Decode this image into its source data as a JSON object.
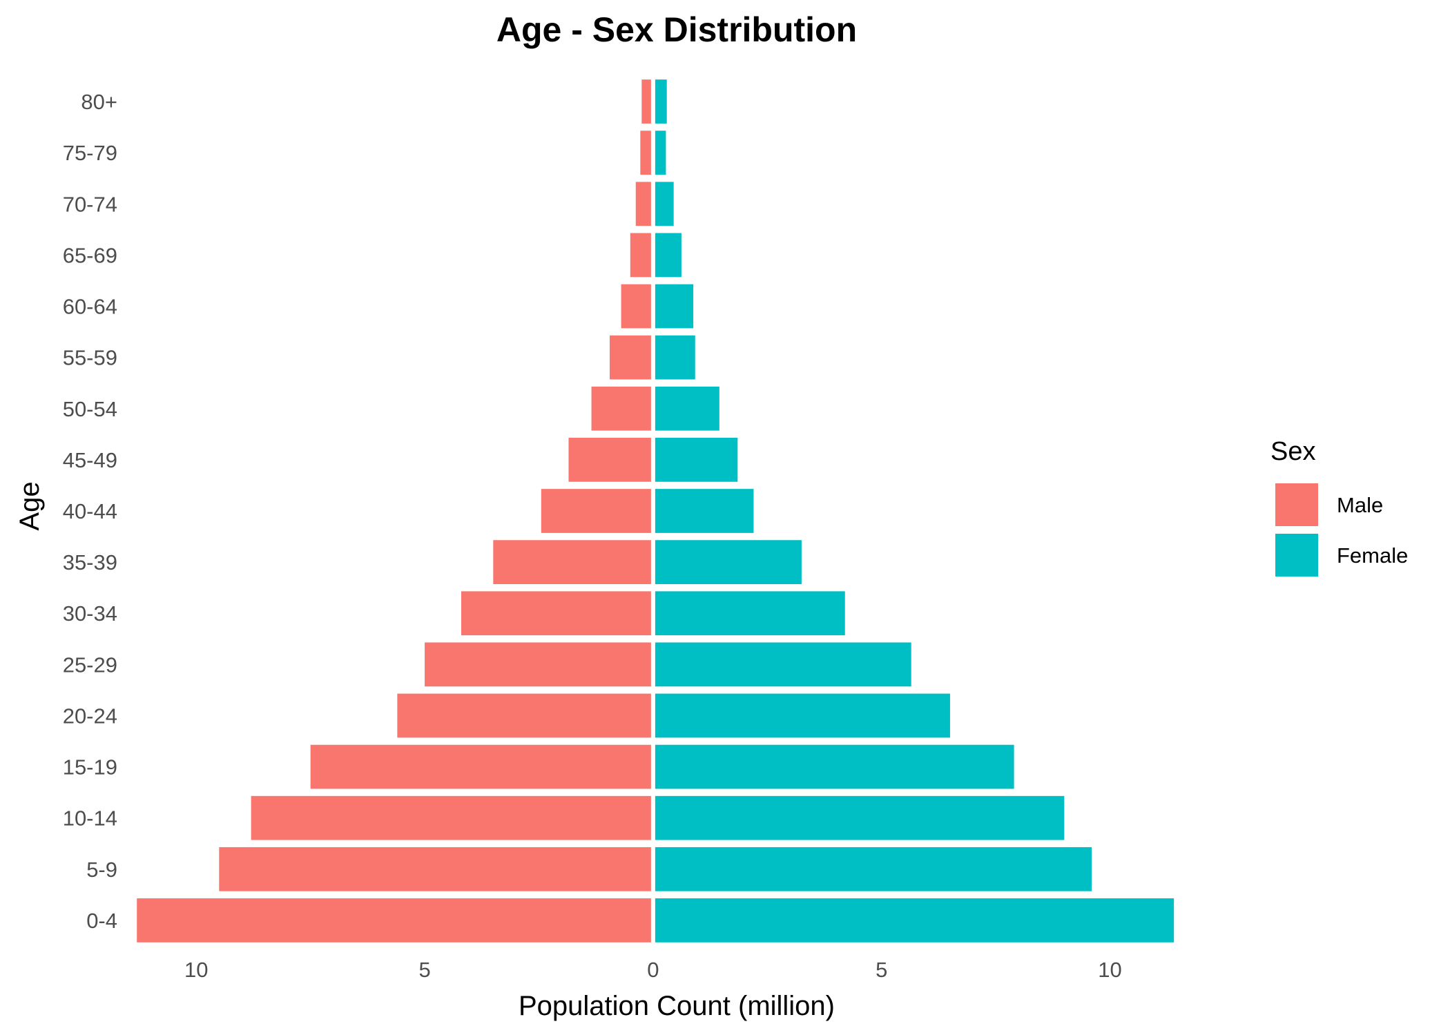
{
  "chart_data": {
    "type": "bar",
    "orientation": "horizontal",
    "layout": "population-pyramid",
    "title": "Age - Sex Distribution",
    "xlabel": "Population Count (million)",
    "ylabel": "Age",
    "categories": [
      "0-4",
      "5-9",
      "10-14",
      "15-19",
      "20-24",
      "25-29",
      "30-34",
      "35-39",
      "40-44",
      "45-49",
      "50-54",
      "55-59",
      "60-64",
      "65-69",
      "70-74",
      "75-79",
      "80+"
    ],
    "series": [
      {
        "name": "Male",
        "color": "#F8766D",
        "side": "left",
        "values": [
          11.3,
          9.5,
          8.8,
          7.5,
          5.6,
          5.0,
          4.2,
          3.5,
          2.45,
          1.85,
          1.35,
          0.95,
          0.7,
          0.5,
          0.38,
          0.28,
          0.25
        ]
      },
      {
        "name": "Female",
        "color": "#00BFC4",
        "side": "right",
        "values": [
          11.4,
          9.6,
          9.0,
          7.9,
          6.5,
          5.65,
          4.2,
          3.25,
          2.2,
          1.85,
          1.45,
          0.92,
          0.88,
          0.62,
          0.45,
          0.28,
          0.3
        ]
      }
    ],
    "xlim": [
      -11.5,
      11.7
    ],
    "xticks": [
      {
        "value": -10,
        "label": "10"
      },
      {
        "value": -5,
        "label": "5"
      },
      {
        "value": 0,
        "label": "0"
      },
      {
        "value": 5,
        "label": "5"
      },
      {
        "value": 10,
        "label": "10"
      }
    ],
    "grid": false,
    "legend": {
      "title": "Sex",
      "position": "right",
      "entries": [
        "Male",
        "Female"
      ]
    }
  }
}
